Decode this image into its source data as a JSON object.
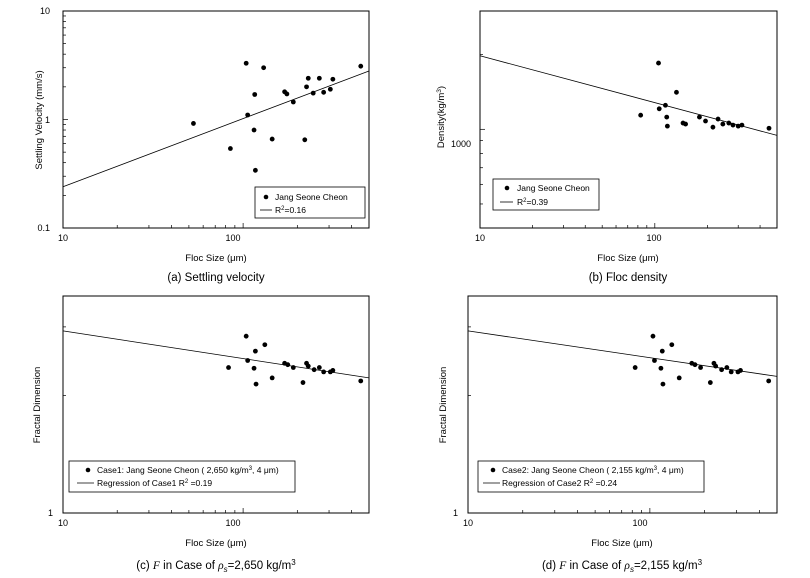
{
  "chart_data": [
    {
      "type": "scatter",
      "panel": "a",
      "xscale": "log",
      "yscale": "log",
      "xlim": [
        10,
        500
      ],
      "ylim": [
        0.1,
        10
      ],
      "xticks": [
        "10",
        "100"
      ],
      "yticks": [
        "0.1",
        "1",
        "10"
      ],
      "xlabel": "Floc Size (μm)",
      "ylabel": "Settling Velocity (mm/s)",
      "caption": "(a) Settling velocity",
      "legend": {
        "points": "Jang Seone Cheon",
        "line": "R²=0.16",
        "line_base": "R",
        "line_sup": "2",
        "line_rest": "=0.16",
        "position": "bottom-right"
      },
      "points": [
        [
          53,
          0.92
        ],
        [
          85,
          0.54
        ],
        [
          104,
          3.3
        ],
        [
          106,
          1.1
        ],
        [
          115,
          0.8
        ],
        [
          116,
          1.7
        ],
        [
          117,
          0.34
        ],
        [
          130,
          3.0
        ],
        [
          145,
          0.66
        ],
        [
          170,
          1.8
        ],
        [
          175,
          1.72
        ],
        [
          190,
          1.45
        ],
        [
          220,
          0.65
        ],
        [
          225,
          2.0
        ],
        [
          230,
          2.4
        ],
        [
          245,
          1.75
        ],
        [
          265,
          2.4
        ],
        [
          280,
          1.78
        ],
        [
          305,
          1.9
        ],
        [
          315,
          2.35
        ],
        [
          450,
          3.1
        ]
      ],
      "regression": [
        [
          10,
          0.24
        ],
        [
          500,
          2.8
        ]
      ]
    },
    {
      "type": "scatter",
      "panel": "b",
      "xscale": "log",
      "yscale": "log",
      "xlim": [
        10,
        500
      ],
      "ylim": [
        400,
        3000
      ],
      "xticks": [
        "10",
        "100"
      ],
      "yticks": [
        "1000"
      ],
      "xlabel": "Floc Size (μm)",
      "ylabel": "Density(kg/m³)",
      "ylabel_base": "Density(kg/m",
      "ylabel_sup": "3",
      "ylabel_end": ")",
      "caption": "(b) Floc density",
      "legend": {
        "points": "Jang Seone Cheon",
        "line": "R²=0.39",
        "line_base": "R",
        "line_sup": "2",
        "line_rest": "=0.39",
        "position": "bottom-left"
      },
      "points": [
        [
          83,
          1140
        ],
        [
          105,
          1850
        ],
        [
          106,
          1210
        ],
        [
          115,
          1250
        ],
        [
          117,
          1120
        ],
        [
          118,
          1030
        ],
        [
          133,
          1410
        ],
        [
          145,
          1060
        ],
        [
          150,
          1050
        ],
        [
          180,
          1120
        ],
        [
          195,
          1080
        ],
        [
          215,
          1020
        ],
        [
          230,
          1100
        ],
        [
          245,
          1050
        ],
        [
          265,
          1060
        ],
        [
          280,
          1040
        ],
        [
          300,
          1030
        ],
        [
          315,
          1040
        ],
        [
          450,
          1010
        ]
      ],
      "regression": [
        [
          10,
          1980
        ],
        [
          500,
          945
        ]
      ]
    },
    {
      "type": "scatter",
      "panel": "c",
      "xscale": "log",
      "yscale": "log",
      "xlim": [
        10,
        500
      ],
      "ylim": [
        1,
        3.6
      ],
      "xticks": [
        "10",
        "100"
      ],
      "yticks": [
        "1"
      ],
      "xlabel": "Floc Size (μm)",
      "ylabel": "Fractal Dimension",
      "caption_prefix": "(c) ",
      "caption_var": "F",
      "caption_mid": " in Case of ",
      "caption_rho": "ρ",
      "caption_sub": "s",
      "caption_val": "=2,650 kg/m",
      "caption_sup": "3",
      "legend": {
        "points": "Case1: Jang Seone Cheon ( 2,650 kg/m³, 4 μm)",
        "points_base": "Case1: Jang Seone Cheon ( 2,650 kg/m",
        "points_sup": "3",
        "points_end": ", 4 μm)",
        "line": "Regression of Case1 R²=0.19",
        "line_base": "Regression of Case1 R",
        "line_sup": "2",
        "line_rest": " =0.19",
        "position": "bottom-left"
      },
      "points": [
        [
          83,
          2.36
        ],
        [
          104,
          2.84
        ],
        [
          106,
          2.46
        ],
        [
          115,
          2.35
        ],
        [
          117,
          2.6
        ],
        [
          118,
          2.14
        ],
        [
          132,
          2.7
        ],
        [
          145,
          2.22
        ],
        [
          170,
          2.42
        ],
        [
          177,
          2.4
        ],
        [
          190,
          2.36
        ],
        [
          215,
          2.16
        ],
        [
          225,
          2.42
        ],
        [
          230,
          2.38
        ],
        [
          248,
          2.33
        ],
        [
          265,
          2.36
        ],
        [
          280,
          2.3
        ],
        [
          305,
          2.3
        ],
        [
          315,
          2.32
        ],
        [
          450,
          2.18
        ]
      ],
      "regression": [
        [
          10,
          2.93
        ],
        [
          500,
          2.22
        ]
      ]
    },
    {
      "type": "scatter",
      "panel": "d",
      "xscale": "log",
      "yscale": "log",
      "xlim": [
        10,
        500
      ],
      "ylim": [
        1,
        3.6
      ],
      "xticks": [
        "10",
        "100"
      ],
      "yticks": [
        "1"
      ],
      "xlabel": "Floc Size (μm)",
      "ylabel": "Fractal Dimension",
      "caption_prefix": "(d) ",
      "caption_var": "F",
      "caption_mid": " in Case of ",
      "caption_rho": "ρ",
      "caption_sub": "s",
      "caption_val": "=2,155 kg/m",
      "caption_sup": "3",
      "legend": {
        "points": "Case2: Jang Seone Cheon ( 2,155 kg/m³, 4 μm)",
        "points_base": "Case2: Jang Seone Cheon ( 2,155 kg/m",
        "points_sup": "3",
        "points_end": ", 4 μm)",
        "line": "Regression of Case2 R²=0.24",
        "line_base": "Regression of Case2 R",
        "line_sup": "2",
        "line_rest": " =0.24",
        "position": "bottom-left"
      },
      "points": [
        [
          83,
          2.36
        ],
        [
          104,
          2.84
        ],
        [
          106,
          2.46
        ],
        [
          115,
          2.35
        ],
        [
          117,
          2.6
        ],
        [
          118,
          2.14
        ],
        [
          132,
          2.7
        ],
        [
          145,
          2.22
        ],
        [
          170,
          2.42
        ],
        [
          177,
          2.4
        ],
        [
          190,
          2.36
        ],
        [
          215,
          2.16
        ],
        [
          225,
          2.42
        ],
        [
          230,
          2.38
        ],
        [
          248,
          2.33
        ],
        [
          265,
          2.36
        ],
        [
          280,
          2.3
        ],
        [
          305,
          2.3
        ],
        [
          315,
          2.32
        ],
        [
          450,
          2.18
        ]
      ],
      "regression": [
        [
          10,
          2.93
        ],
        [
          500,
          2.24
        ]
      ]
    }
  ]
}
